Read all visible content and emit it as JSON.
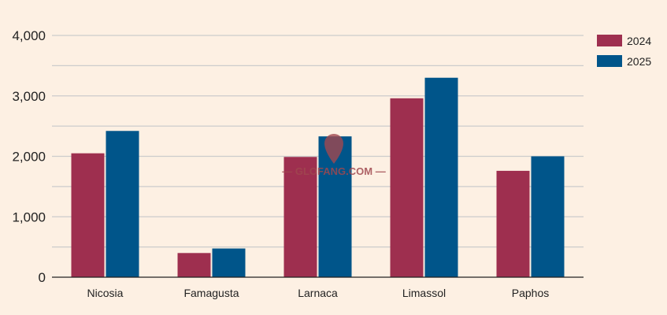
{
  "chart_data": {
    "type": "bar",
    "categories": [
      "Nicosia",
      "Famagusta",
      "Larnaca",
      "Limassol",
      "Paphos"
    ],
    "series": [
      {
        "name": "2024",
        "color": "#9e2f4f",
        "values": [
          2050,
          400,
          1990,
          2960,
          1760
        ]
      },
      {
        "name": "2025",
        "color": "#00558a",
        "values": [
          2420,
          475,
          2330,
          3300,
          2000
        ]
      }
    ],
    "ylim": [
      0,
      4000
    ],
    "yticks": [
      0,
      1000,
      2000,
      3000,
      4000
    ],
    "ytick_labels": [
      "0",
      "1,000",
      "2,000",
      "3,000",
      "4,000"
    ],
    "grid": true,
    "legend": "top-right",
    "watermark": "GLOFANG.COM"
  }
}
